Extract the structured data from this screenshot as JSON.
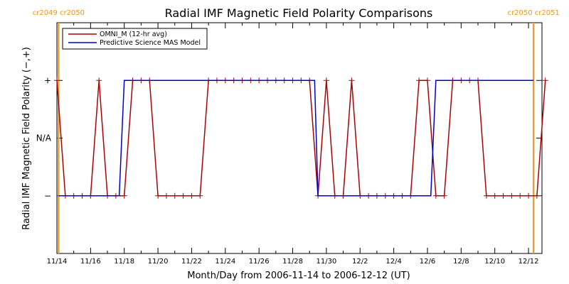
{
  "chart_data": {
    "type": "line",
    "title": "Radial IMF Magnetic Field Polarity Comparisons",
    "xlabel": "Month/Day from 2006-11-14 to 2006-12-12 (UT)",
    "ylabel": "Radial IMF Magnetic Field Polarity (−,+)",
    "x_ticks": [
      "11/14",
      "11/16",
      "11/18",
      "11/20",
      "11/22",
      "11/24",
      "11/26",
      "11/28",
      "11/30",
      "12/2",
      "12/4",
      "12/6",
      "12/8",
      "12/10",
      "12/12"
    ],
    "y_ticks": [
      "−",
      "N/A",
      "+"
    ],
    "xlim": [
      0,
      28.8
    ],
    "ylim": [
      -2,
      2
    ],
    "carrington_markers": [
      {
        "x": 0.1,
        "label_left": "cr2049",
        "label_right": "cr2050"
      },
      {
        "x": 28.3,
        "label_left": "cr2050",
        "label_right": "cr2051"
      }
    ],
    "legend_placement": "top-left",
    "series": [
      {
        "name": "OMNI_M (12-hr avg)",
        "color": "#b00000",
        "markers": true,
        "points": [
          [
            0.0,
            1
          ],
          [
            0.5,
            -1
          ],
          [
            1.0,
            -1
          ],
          [
            1.5,
            -1
          ],
          [
            2.0,
            -1
          ],
          [
            2.5,
            1
          ],
          [
            3.0,
            -1
          ],
          [
            3.5,
            -1
          ],
          [
            4.0,
            -1
          ],
          [
            4.5,
            1
          ],
          [
            5.0,
            1
          ],
          [
            5.5,
            1
          ],
          [
            6.0,
            -1
          ],
          [
            6.5,
            -1
          ],
          [
            7.0,
            -1
          ],
          [
            7.5,
            -1
          ],
          [
            8.0,
            -1
          ],
          [
            8.5,
            -1
          ],
          [
            9.0,
            1
          ],
          [
            9.5,
            1
          ],
          [
            10.0,
            1
          ],
          [
            10.5,
            1
          ],
          [
            11.0,
            1
          ],
          [
            11.5,
            1
          ],
          [
            12.0,
            1
          ],
          [
            12.5,
            1
          ],
          [
            13.0,
            1
          ],
          [
            13.5,
            1
          ],
          [
            14.0,
            1
          ],
          [
            14.5,
            1
          ],
          [
            15.0,
            1
          ],
          [
            15.5,
            -1
          ],
          [
            16.0,
            1
          ],
          [
            16.5,
            -1
          ],
          [
            17.0,
            -1
          ],
          [
            17.5,
            1
          ],
          [
            18.0,
            -1
          ],
          [
            18.5,
            -1
          ],
          [
            19.0,
            -1
          ],
          [
            19.5,
            -1
          ],
          [
            20.0,
            -1
          ],
          [
            20.5,
            -1
          ],
          [
            21.0,
            -1
          ],
          [
            21.5,
            1
          ],
          [
            22.0,
            1
          ],
          [
            22.5,
            -1
          ],
          [
            23.0,
            -1
          ],
          [
            23.5,
            1
          ],
          [
            24.0,
            1
          ],
          [
            24.5,
            1
          ],
          [
            25.0,
            1
          ],
          [
            25.5,
            -1
          ],
          [
            26.0,
            -1
          ],
          [
            26.5,
            -1
          ],
          [
            27.0,
            -1
          ],
          [
            27.5,
            -1
          ],
          [
            28.0,
            -1
          ],
          [
            28.5,
            -1
          ],
          [
            29.0,
            1
          ]
        ]
      },
      {
        "name": "Predictive Science MAS Model",
        "color": "#0000d0",
        "markers": false,
        "points": [
          [
            0.1,
            -1
          ],
          [
            3.7,
            -1
          ],
          [
            4.0,
            1
          ],
          [
            15.3,
            1
          ],
          [
            15.5,
            -1
          ],
          [
            22.2,
            -1
          ],
          [
            22.5,
            1
          ],
          [
            28.3,
            1
          ]
        ]
      }
    ]
  }
}
